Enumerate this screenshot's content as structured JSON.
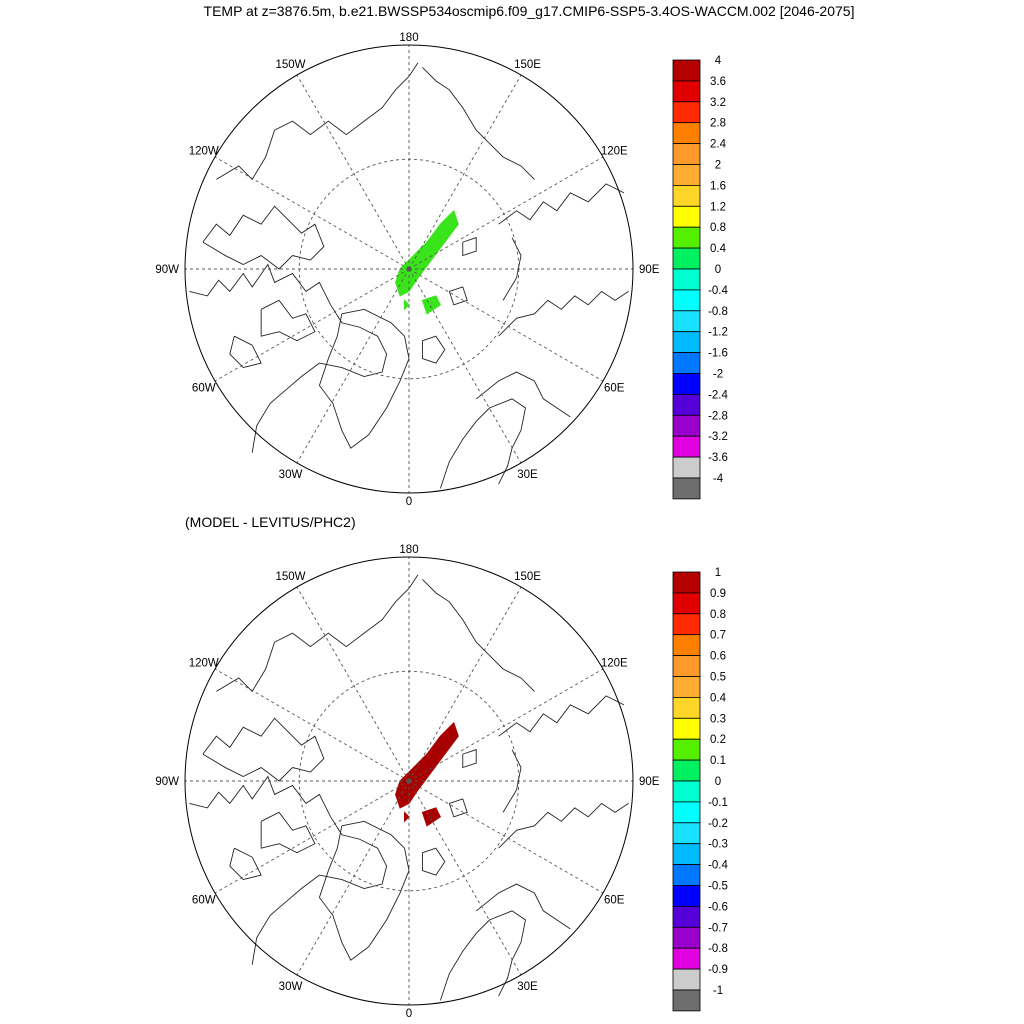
{
  "title": "TEMP at z=3876.5m, b.e21.BWSSP534oscmip6.f09_g17.CMIP6-SSP5-3.4OS-WACCM.002 [2046-2075]",
  "subtitle": "(MODEL - LEVITUS/PHC2)",
  "longitude_labels": [
    "180",
    "150E",
    "120E",
    "90E",
    "60E",
    "30E",
    "0",
    "30W",
    "60W",
    "90W",
    "120W",
    "150W"
  ],
  "panels": [
    {
      "name": "model-temperature",
      "anomaly_color": "#39e51a",
      "colorbar": {
        "labels": [
          "4",
          "3.6",
          "3.2",
          "2.8",
          "2.4",
          "2",
          "1.6",
          "1.2",
          "0.8",
          "0.4",
          "0",
          "-0.4",
          "-0.8",
          "-1.2",
          "-1.6",
          "-2",
          "-2.4",
          "-2.8",
          "-3.2",
          "-3.6",
          "-4"
        ],
        "colors": [
          "#b50000",
          "#e00000",
          "#ff2a00",
          "#ff8000",
          "#ff9a2a",
          "#ffad33",
          "#ffd52a",
          "#ffff00",
          "#55f000",
          "#00f060",
          "#00ffd0",
          "#00ffff",
          "#1ae0ff",
          "#00bbff",
          "#0077ff",
          "#0000ff",
          "#5500d8",
          "#9900cc",
          "#e000e0",
          "#cccccc",
          "#6e6e6e"
        ]
      }
    },
    {
      "name": "model-minus-levitus",
      "anomaly_color": "#a80000",
      "colorbar": {
        "labels": [
          "1",
          "0.9",
          "0.8",
          "0.7",
          "0.6",
          "0.5",
          "0.4",
          "0.3",
          "0.2",
          "0.1",
          "0",
          "-0.1",
          "-0.2",
          "-0.3",
          "-0.4",
          "-0.5",
          "-0.6",
          "-0.7",
          "-0.8",
          "-0.9",
          "-1"
        ],
        "colors": [
          "#b50000",
          "#e00000",
          "#ff2a00",
          "#ff8000",
          "#ff9a2a",
          "#ffad33",
          "#ffd52a",
          "#ffff00",
          "#55f000",
          "#00f060",
          "#00ffd0",
          "#00ffff",
          "#1ae0ff",
          "#00bbff",
          "#0077ff",
          "#0000ff",
          "#5500d8",
          "#9900cc",
          "#e000e0",
          "#cccccc",
          "#6e6e6e"
        ]
      }
    }
  ]
}
